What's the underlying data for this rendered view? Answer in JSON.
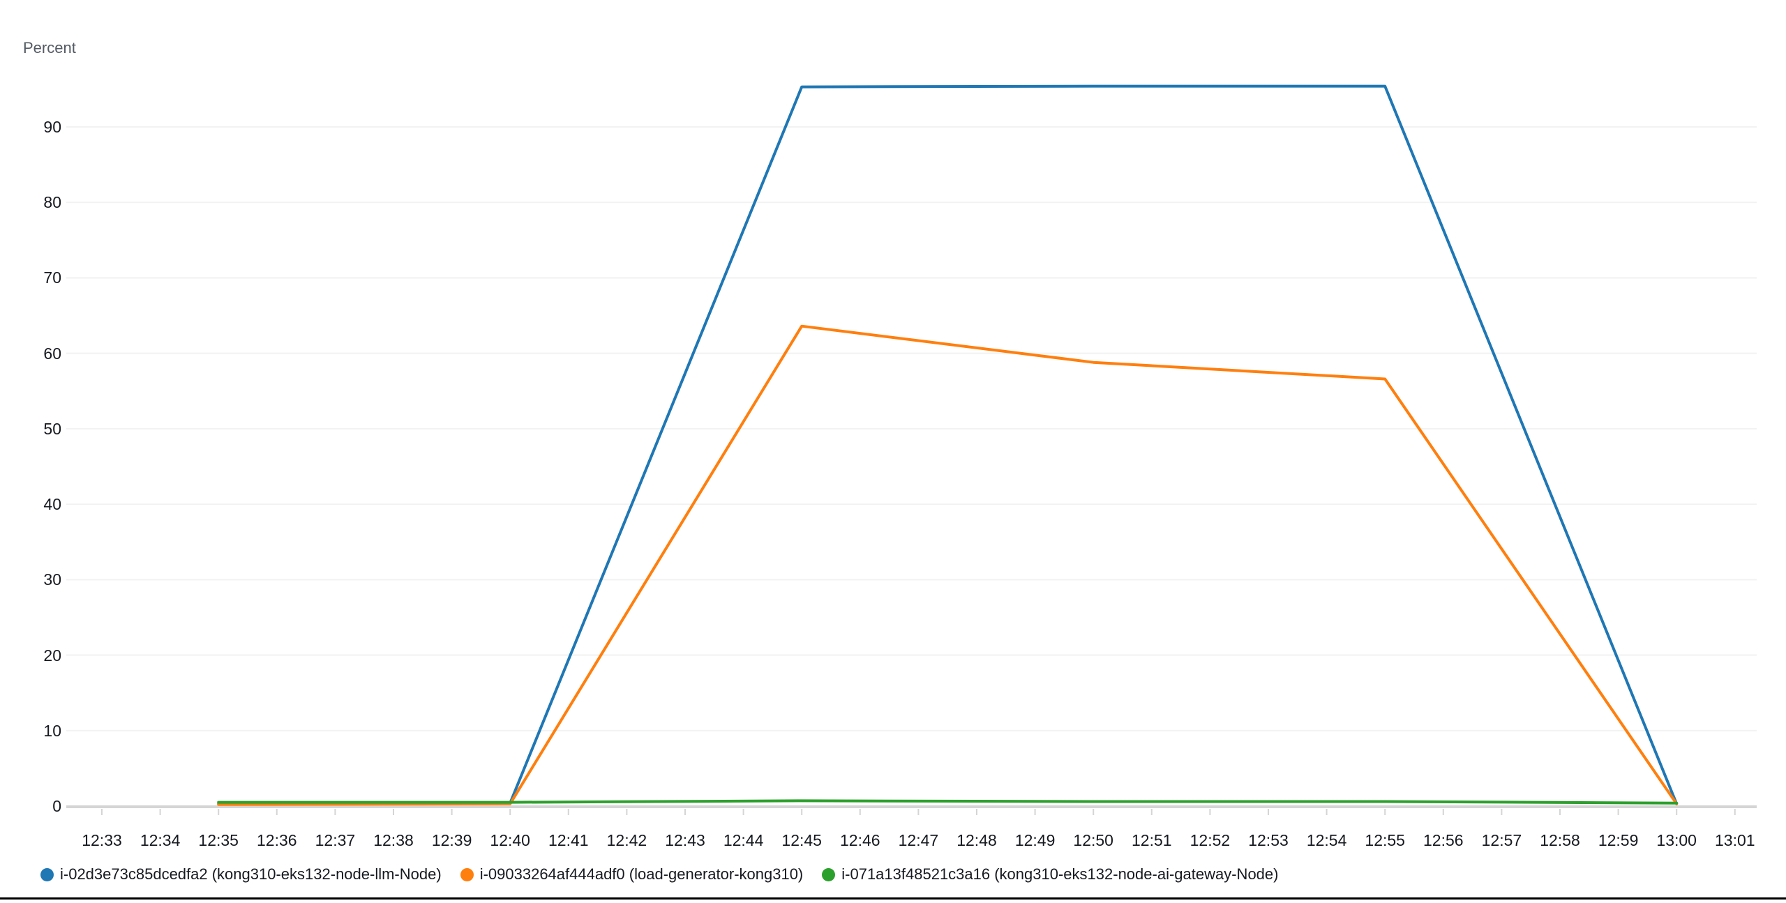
{
  "chart": {
    "unit_label": "Percent",
    "colors": {
      "grid": "#f2f2f2",
      "axis": "#d5d5d5",
      "tick_mark": "#d5d5d5",
      "tick_text": "#16191f",
      "unit_label_text": "#545b64",
      "bottom_border": "#000000"
    }
  },
  "chart_data": {
    "type": "line",
    "title": "",
    "xlabel": "",
    "ylabel": "Percent",
    "ylim": [
      0,
      100
    ],
    "grid": true,
    "legend_position": "bottom",
    "x_tick_labels": [
      "12:33",
      "12:34",
      "12:35",
      "12:36",
      "12:37",
      "12:38",
      "12:39",
      "12:40",
      "12:41",
      "12:42",
      "12:43",
      "12:44",
      "12:45",
      "12:46",
      "12:47",
      "12:48",
      "12:49",
      "12:50",
      "12:51",
      "12:52",
      "12:53",
      "12:54",
      "12:55",
      "12:56",
      "12:57",
      "12:58",
      "12:59",
      "13:00",
      "13:01"
    ],
    "y_tick_labels": [
      0,
      10,
      20,
      30,
      40,
      50,
      60,
      70,
      80,
      90
    ],
    "x": [
      "12:35",
      "12:40",
      "12:45",
      "12:50",
      "12:55",
      "13:00"
    ],
    "series": [
      {
        "name": "i-02d3e73c85dcedfa2 (kong310-eks132-node-llm-Node)",
        "color": "#1f77b4",
        "values": [
          0.3,
          0.4,
          95.3,
          95.4,
          95.4,
          0.3
        ]
      },
      {
        "name": "i-09033264af444adf0 (load-generator-kong310)",
        "color": "#ff7f0e",
        "values": [
          0.2,
          0.3,
          63.6,
          58.8,
          56.6,
          0.3
        ]
      },
      {
        "name": "i-071a13f48521c3a16 (kong310-eks132-node-ai-gateway-Node)",
        "color": "#2ca02c",
        "values": [
          0.5,
          0.5,
          0.7,
          0.6,
          0.6,
          0.4
        ]
      }
    ]
  }
}
